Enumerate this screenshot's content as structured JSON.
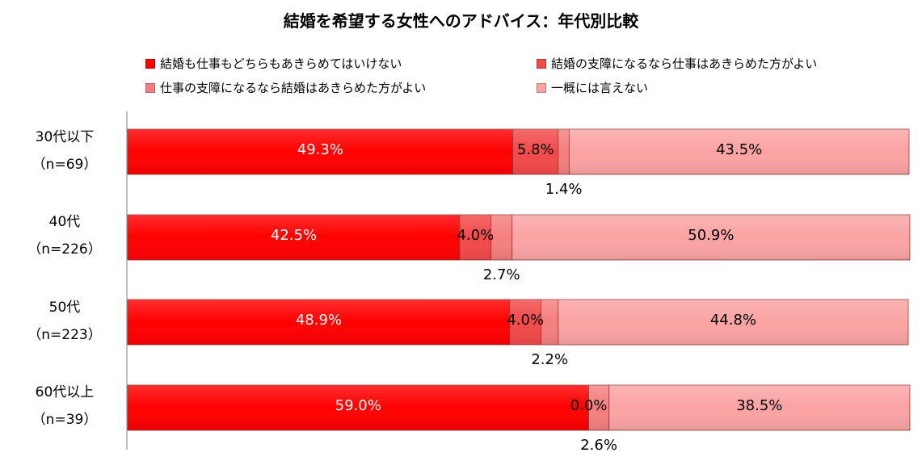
{
  "chart_data": {
    "type": "bar",
    "orientation": "horizontal",
    "stacked": true,
    "title": "結婚を希望する女性へのアドバイス：年代別比較",
    "categories": [
      {
        "label": "30代以下",
        "n": "（n=69）"
      },
      {
        "label": "40代",
        "n": "（n=226）"
      },
      {
        "label": "50代",
        "n": "（n=223）"
      },
      {
        "label": "60代以上",
        "n": "（n=39）"
      }
    ],
    "series": [
      {
        "name": "結婚も仕事もどちらもあきらめてはいけない",
        "color": "#ff0000",
        "values": [
          49.3,
          42.5,
          48.9,
          59.0
        ],
        "labels": [
          "49.3%",
          "42.5%",
          "48.9%",
          "59.0%"
        ]
      },
      {
        "name": "結婚の支障になるなら仕事はあきらめた方がよい",
        "color": "#f24a4a",
        "values": [
          5.8,
          4.0,
          4.0,
          0.0
        ],
        "labels": [
          "5.8%",
          "4.0%",
          "4.0%",
          "0.0%"
        ]
      },
      {
        "name": "仕事の支障になるなら結婚はあきらめた方がよい",
        "color": "#f57f7f",
        "values": [
          1.4,
          2.7,
          2.2,
          2.6
        ],
        "labels": [
          "1.4%",
          "2.7%",
          "2.2%",
          "2.6%"
        ]
      },
      {
        "name": "一概には言えない",
        "color": "#fba3a3",
        "values": [
          43.5,
          50.9,
          44.8,
          38.5
        ],
        "labels": [
          "43.5%",
          "50.9%",
          "44.8%",
          "38.5%"
        ]
      }
    ],
    "xlim": [
      0,
      100
    ],
    "grid": false,
    "legend": "top"
  }
}
